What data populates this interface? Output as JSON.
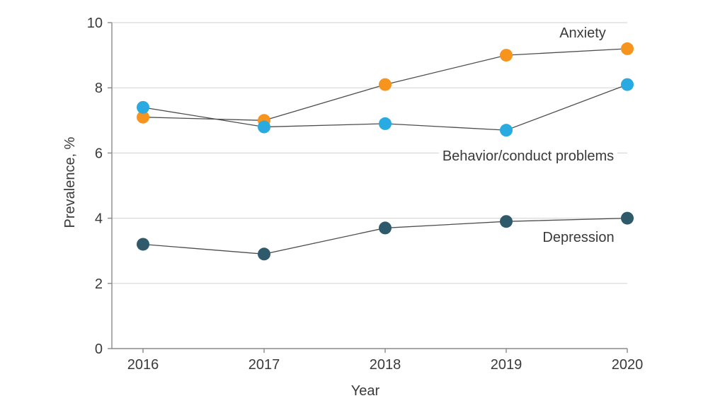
{
  "chart_data": {
    "type": "line",
    "title": "",
    "xlabel": "Year",
    "ylabel": "Prevalence, %",
    "categories": [
      "2016",
      "2017",
      "2018",
      "2019",
      "2020"
    ],
    "ylim": [
      0,
      10
    ],
    "yticks": [
      0,
      2,
      4,
      6,
      8,
      10
    ],
    "grid": "horizontal",
    "legend_position": "inline-labels-on-chart",
    "line_color": "#4d4d4d",
    "series": [
      {
        "name": "Anxiety",
        "values": [
          7.1,
          7.0,
          8.1,
          9.0,
          9.2
        ],
        "marker_color": "#f7941e"
      },
      {
        "name": "Behavior/conduct problems",
        "values": [
          7.4,
          6.8,
          6.9,
          6.7,
          8.1
        ],
        "marker_color": "#29abe2"
      },
      {
        "name": "Depression",
        "values": [
          3.2,
          2.9,
          3.7,
          3.9,
          4.0
        ],
        "marker_color": "#2e5a6b"
      }
    ]
  },
  "colors": {
    "background": "#ffffff",
    "axis": "#8a8a8a",
    "grid": "#d9d9d9",
    "text": "#3a3a3a"
  }
}
